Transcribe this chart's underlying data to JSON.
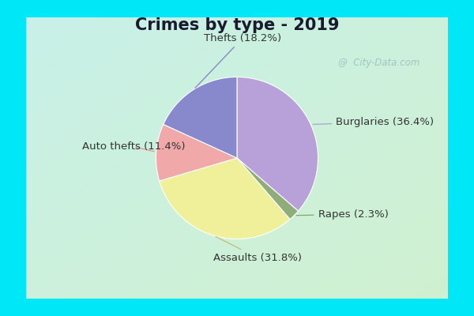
{
  "title": "Crimes by type - 2019",
  "labels": [
    "Burglaries",
    "Rapes",
    "Assaults",
    "Auto thefts",
    "Thefts"
  ],
  "values": [
    36.4,
    2.3,
    31.8,
    11.4,
    18.2
  ],
  "colors": [
    "#b8a0d8",
    "#8fad7a",
    "#f0f09a",
    "#f0a8a8",
    "#8888cc"
  ],
  "background_outer": "#00e8f8",
  "background_inner_tl": "#c8f0e8",
  "background_inner_br": "#d8f0d0",
  "title_fontsize": 15,
  "label_fontsize": 9.5,
  "watermark_text": "City-Data.com",
  "startangle": 90,
  "border_thickness": 0.055
}
